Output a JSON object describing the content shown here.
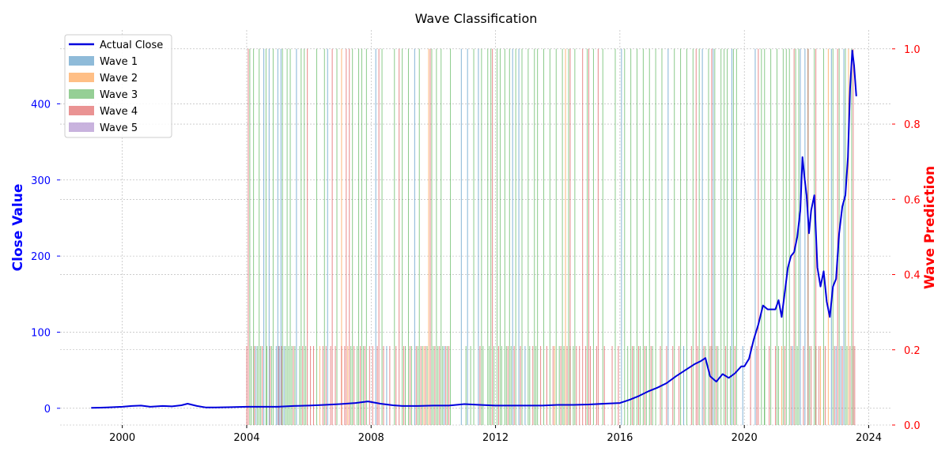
{
  "chart_data": {
    "type": "line",
    "title": "Wave Classification",
    "xlabel": "",
    "ylabel": "Close Value",
    "y2label": "Wave Prediction",
    "xlim": [
      1998.0,
      2024.75
    ],
    "ylim": [
      -22,
      497
    ],
    "y2lim": [
      0,
      1.05
    ],
    "x_ticks": [
      "2000",
      "2004",
      "2008",
      "2012",
      "2016",
      "2020",
      "2024"
    ],
    "y_ticks": [
      "0",
      "100",
      "200",
      "300",
      "400"
    ],
    "y2_ticks": [
      "0.0",
      "0.2",
      "0.4",
      "0.6",
      "0.8",
      "1.0"
    ],
    "grid": true,
    "legend_position": "top-left",
    "legend": [
      "Actual Close",
      "Wave 1",
      "Wave 2",
      "Wave 3",
      "Wave 4",
      "Wave 5"
    ],
    "colors": {
      "close": "#0000dd",
      "left_axis": "#0000ff",
      "right_axis": "#ff0000",
      "wave_1": "#1f77b4",
      "wave_2": "#ff7f0e",
      "wave_3": "#2ca02c",
      "wave_4": "#d62728",
      "wave_5": "#9467bd"
    },
    "series": [
      {
        "name": "Actual Close",
        "x": [
          1999.0,
          1999.5,
          2000.0,
          2000.3,
          2000.6,
          2000.9,
          2001.1,
          2001.3,
          2001.6,
          2001.9,
          2002.1,
          2002.4,
          2002.7,
          2003.0,
          2003.5,
          2004.0,
          2004.5,
          2005.0,
          2005.5,
          2006.0,
          2006.5,
          2007.0,
          2007.5,
          2007.9,
          2008.3,
          2008.7,
          2009.0,
          2009.5,
          2010.0,
          2010.5,
          2011.0,
          2011.5,
          2012.0,
          2012.5,
          2013.0,
          2013.5,
          2014.0,
          2014.5,
          2015.0,
          2015.5,
          2016.0,
          2016.3,
          2016.6,
          2016.9,
          2017.2,
          2017.5,
          2017.8,
          2018.1,
          2018.4,
          2018.6,
          2018.75,
          2018.9,
          2019.1,
          2019.3,
          2019.5,
          2019.7,
          2019.9,
          2020.0,
          2020.15,
          2020.3,
          2020.45,
          2020.6,
          2020.75,
          2020.9,
          2021.0,
          2021.1,
          2021.2,
          2021.3,
          2021.4,
          2021.5,
          2021.6,
          2021.7,
          2021.8,
          2021.87,
          2021.93,
          2022.0,
          2022.08,
          2022.15,
          2022.25,
          2022.35,
          2022.45,
          2022.55,
          2022.65,
          2022.75,
          2022.85,
          2022.95,
          2023.05,
          2023.15,
          2023.25,
          2023.33,
          2023.4,
          2023.47,
          2023.53,
          2023.6
        ],
        "y": [
          0.5,
          1,
          2,
          3,
          3.5,
          2,
          2.5,
          3,
          2.5,
          4,
          6,
          3,
          1,
          1,
          1.5,
          2,
          2,
          2,
          3,
          3.5,
          4.5,
          5.5,
          7,
          9,
          6,
          4,
          3,
          3,
          3.5,
          3.5,
          5.5,
          4.5,
          3.5,
          3.5,
          3.5,
          3.5,
          4.5,
          4.5,
          5,
          6,
          7,
          11,
          16,
          22,
          27,
          33,
          42,
          50,
          58,
          62,
          66,
          42,
          35,
          45,
          40,
          46,
          55,
          55,
          65,
          90,
          110,
          135,
          130,
          130,
          130,
          142,
          120,
          152,
          185,
          200,
          205,
          225,
          260,
          330,
          305,
          280,
          230,
          260,
          280,
          185,
          160,
          180,
          140,
          120,
          160,
          170,
          230,
          265,
          280,
          330,
          420,
          470,
          450,
          410
        ]
      }
    ],
    "wave_bars": [
      {
        "name": "Wave 1",
        "height": 1.0,
        "years": [
          2004.55,
          2004.72,
          2005.0,
          2005.1,
          2005.6,
          2006.6,
          2008.15,
          2009.4,
          2010.9,
          2011.1,
          2011.45,
          2012.55,
          2012.75,
          2016.05,
          2017.55,
          2018.65,
          2019.0,
          2019.6,
          2020.35,
          2021.8,
          2021.95,
          2022.8,
          2023.2
        ]
      },
      {
        "name": "Wave 1",
        "height": 0.21,
        "years": [
          2004.3,
          2004.95,
          2005.05,
          2005.2,
          2008.5,
          2010.35,
          2012.95,
          2018.05,
          2019.95,
          2021.55,
          2022.95,
          2023.1
        ]
      },
      {
        "name": "Wave 2",
        "height": 1.0,
        "years": [
          2007.05,
          2009.85,
          2014.25,
          2022.7,
          2023.35
        ]
      },
      {
        "name": "Wave 2",
        "height": 0.21,
        "years": [
          2006.35,
          2007.25,
          2009.7,
          2013.9,
          2021.2,
          2022.45
        ]
      },
      {
        "name": "Wave 3",
        "height": 1.0,
        "years": [
          2004.1,
          2004.22,
          2004.4,
          2004.62,
          2004.85,
          2005.15,
          2005.3,
          2005.4,
          2005.75,
          2005.85,
          2006.25,
          2006.5,
          2006.9,
          2007.4,
          2007.6,
          2007.7,
          2007.85,
          2008.35,
          2008.75,
          2009.0,
          2009.2,
          2009.55,
          2009.95,
          2010.1,
          2010.25,
          2010.55,
          2011.3,
          2011.55,
          2011.75,
          2011.85,
          2012.05,
          2012.15,
          2012.3,
          2012.45,
          2012.65,
          2012.85,
          2013.05,
          2013.25,
          2013.35,
          2013.55,
          2013.75,
          2013.95,
          2014.15,
          2014.35,
          2014.55,
          2014.95,
          2015.15,
          2015.45,
          2015.85,
          2016.15,
          2016.35,
          2016.55,
          2016.75,
          2016.95,
          2017.15,
          2017.35,
          2017.75,
          2017.95,
          2018.15,
          2018.35,
          2018.55,
          2018.85,
          2019.05,
          2019.25,
          2019.35,
          2019.45,
          2019.65,
          2019.75,
          2020.55,
          2020.65,
          2020.85,
          2021.05,
          2021.25,
          2021.35,
          2021.45,
          2021.65,
          2021.75,
          2022.05,
          2022.25,
          2022.55,
          2022.85,
          2023.05,
          2023.25,
          2023.45
        ]
      },
      {
        "name": "Wave 3",
        "height": 0.21,
        "years": [
          2004.15,
          2004.35,
          2004.45,
          2004.65,
          2004.8,
          2005.25,
          2005.35,
          2005.45,
          2005.55,
          2005.7,
          2005.9,
          2007.35,
          2007.55,
          2007.75,
          2009.1,
          2009.3,
          2009.5,
          2009.65,
          2009.8,
          2010.0,
          2010.15,
          2010.3,
          2010.45,
          2011.05,
          2011.2,
          2011.6,
          2011.8,
          2011.95,
          2012.2,
          2012.35,
          2012.5,
          2013.1,
          2013.3,
          2014.05,
          2014.2,
          2014.4,
          2014.5,
          2016.25,
          2016.45,
          2016.65,
          2016.85,
          2017.05,
          2018.75,
          2018.95,
          2019.15,
          2019.55,
          2020.65,
          2021.1,
          2021.7,
          2022.1,
          2022.3,
          2023.3,
          2023.5
        ]
      },
      {
        "name": "Wave 4",
        "height": 1.0,
        "years": [
          2004.05,
          2005.95,
          2006.75,
          2007.2,
          2007.3,
          2008.25,
          2008.9,
          2009.9,
          2011.9,
          2014.4,
          2014.8,
          2015.0,
          2015.3,
          2018.45,
          2018.95,
          2020.45,
          2021.6,
          2022.05,
          2022.3,
          2023.0,
          2023.5
        ]
      },
      {
        "name": "Wave 4",
        "height": 0.21,
        "years": [
          2004.0,
          2004.25,
          2004.5,
          2004.75,
          2005.02,
          2005.12,
          2005.5,
          2005.8,
          2006.05,
          2006.15,
          2006.45,
          2006.55,
          2006.7,
          2006.85,
          2007.05,
          2007.15,
          2007.45,
          2007.65,
          2007.8,
          2007.95,
          2008.05,
          2008.2,
          2008.4,
          2008.6,
          2008.8,
          2009.05,
          2009.25,
          2009.45,
          2009.6,
          2009.75,
          2010.05,
          2010.2,
          2010.4,
          2010.5,
          2011.5,
          2012.1,
          2012.4,
          2012.6,
          2012.8,
          2013.2,
          2013.45,
          2013.65,
          2013.85,
          2014.1,
          2014.3,
          2014.6,
          2014.7,
          2014.9,
          2015.05,
          2015.25,
          2015.5,
          2015.75,
          2015.95,
          2016.4,
          2016.6,
          2016.8,
          2017.0,
          2017.3,
          2017.5,
          2017.7,
          2017.9,
          2018.3,
          2018.5,
          2018.7,
          2018.9,
          2019.1,
          2019.4,
          2019.7,
          2020.2,
          2020.4,
          2020.8,
          2021.0,
          2021.3,
          2021.5,
          2021.9,
          2022.15,
          2022.4,
          2022.6,
          2022.9,
          2023.15,
          2023.4,
          2023.55
        ]
      }
    ]
  }
}
